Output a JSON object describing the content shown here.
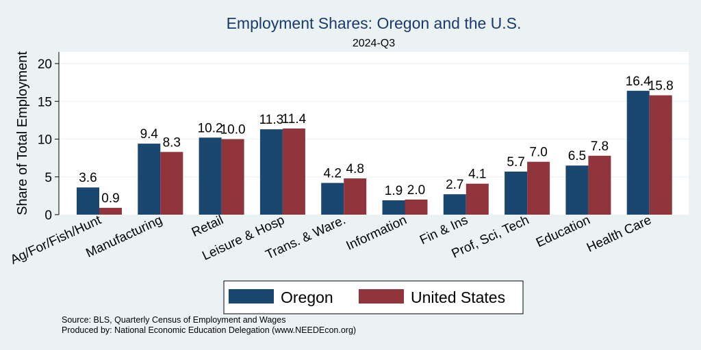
{
  "chart_data": {
    "type": "bar",
    "title": "Employment Shares: Oregon and the U.S.",
    "subtitle": "2024-Q3",
    "ylabel": "Share of Total Employment",
    "xlabel": "",
    "ylim": [
      0,
      21.5
    ],
    "yticks": [
      0,
      5,
      10,
      15,
      20
    ],
    "grid": true,
    "legend_position": "bottom",
    "categories": [
      "Ag/For/Fish/Hunt",
      "Manufacturing",
      "Retail",
      "Leisure & Hosp",
      "Trans. & Ware.",
      "Information",
      "Fin & Ins",
      "Prof, Sci, Tech",
      "Education",
      "Health Care"
    ],
    "series": [
      {
        "name": "Oregon",
        "color": "#1a476f",
        "values": [
          3.6,
          9.4,
          10.2,
          11.3,
          4.2,
          1.9,
          2.7,
          5.7,
          6.5,
          16.4
        ]
      },
      {
        "name": "United States",
        "color": "#90353b",
        "values": [
          0.9,
          8.3,
          10.0,
          11.4,
          4.8,
          2.0,
          4.1,
          7.0,
          7.8,
          15.8
        ]
      }
    ]
  },
  "notes": [
    "Source: BLS, Quarterly Census of Employment and Wages",
    "Produced by: National Economic Education Delegation (www.NEEDEcon.org)"
  ]
}
